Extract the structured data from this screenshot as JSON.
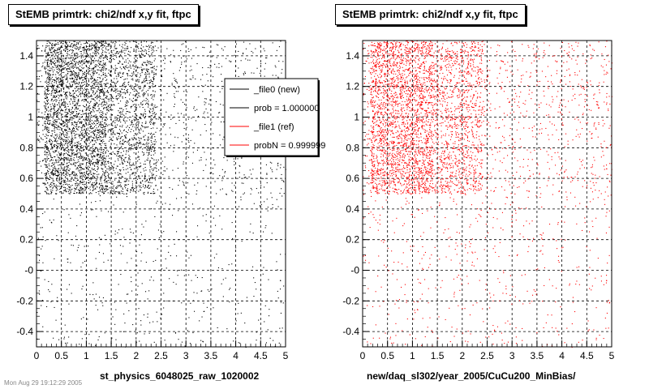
{
  "chart_data": [
    {
      "type": "scatter",
      "title": "StEMB primtrk: chi2/ndf x,y fit, ftpc",
      "xlabel": "st_physics_6048025_raw_1020002",
      "xlim": [
        0,
        5
      ],
      "ylim": [
        -0.5,
        1.5
      ],
      "xticks": [
        0,
        0.5,
        1,
        1.5,
        2,
        2.5,
        3,
        3.5,
        4,
        4.5,
        5
      ],
      "xtick_labels": [
        "0",
        "0.5",
        "1",
        "1.5",
        "2",
        "2.5",
        "3",
        "3.5",
        "4",
        "4.5",
        "5"
      ],
      "yticks": [
        -0.4,
        -0.2,
        0,
        0.2,
        0.4,
        0.6,
        0.8,
        1,
        1.2,
        1.4
      ],
      "ytick_labels": [
        "-0.4",
        "-0.2",
        "-0",
        "0.2",
        "0.4",
        "0.6",
        "0.8",
        "1",
        "1.2",
        "1.4"
      ],
      "grid": true,
      "series": [
        {
          "name": "_file0 (new)",
          "color": "#000000",
          "clusters": [
            {
              "x_range": [
                0.15,
                2.4
              ],
              "y_range": [
                0.5,
                1.5
              ],
              "count": 2600
            },
            {
              "x_range": [
                0.15,
                1.4
              ],
              "y_range": [
                0.5,
                1.5
              ],
              "count": 1400
            },
            {
              "x_range": [
                0,
                5
              ],
              "y_range": [
                -0.5,
                1.5
              ],
              "count": 800
            },
            {
              "x_range": [
                0,
                5
              ],
              "y_range": [
                0.5,
                1.5
              ],
              "count": 600
            }
          ]
        }
      ],
      "legend": {
        "placement": "top-right",
        "entries": [
          {
            "label": "_file0 (new)",
            "color": "#000000"
          },
          {
            "label": "prob = 1.000000",
            "color": "#000000"
          },
          {
            "label": "_file1 (ref)",
            "color": "#ff0000"
          },
          {
            "label": "probN = 0.999999",
            "color": "#ff0000"
          }
        ]
      }
    },
    {
      "type": "scatter",
      "title": "StEMB primtrk: chi2/ndf x,y fit, ftpc",
      "xlabel": "new/daq_sl302/year_2005/CuCu200_MinBias/",
      "xlim": [
        0,
        5
      ],
      "ylim": [
        -0.5,
        1.5
      ],
      "xticks": [
        0,
        0.5,
        1,
        1.5,
        2,
        2.5,
        3,
        3.5,
        4,
        4.5,
        5
      ],
      "xtick_labels": [
        "0",
        "0.5",
        "1",
        "1.5",
        "2",
        "2.5",
        "3",
        "3.5",
        "4",
        "4.5",
        "5"
      ],
      "yticks": [
        -0.4,
        -0.2,
        0,
        0.2,
        0.4,
        0.6,
        0.8,
        1,
        1.2,
        1.4
      ],
      "ytick_labels": [
        "-0.4",
        "-0.2",
        "-0",
        "0.2",
        "0.4",
        "0.6",
        "0.8",
        "1",
        "1.2",
        "1.4"
      ],
      "grid": true,
      "series": [
        {
          "name": "_file1 (ref)",
          "color": "#ff0000",
          "clusters": [
            {
              "x_range": [
                0.15,
                2.4
              ],
              "y_range": [
                0.5,
                1.5
              ],
              "count": 2200
            },
            {
              "x_range": [
                0.15,
                1.4
              ],
              "y_range": [
                0.5,
                1.5
              ],
              "count": 1000
            },
            {
              "x_range": [
                0,
                5
              ],
              "y_range": [
                -0.5,
                1.5
              ],
              "count": 900
            },
            {
              "x_range": [
                0,
                5
              ],
              "y_range": [
                0.5,
                1.5
              ],
              "count": 700
            }
          ]
        }
      ]
    }
  ],
  "footer": "Mon Aug 29 19:12:29 2005"
}
